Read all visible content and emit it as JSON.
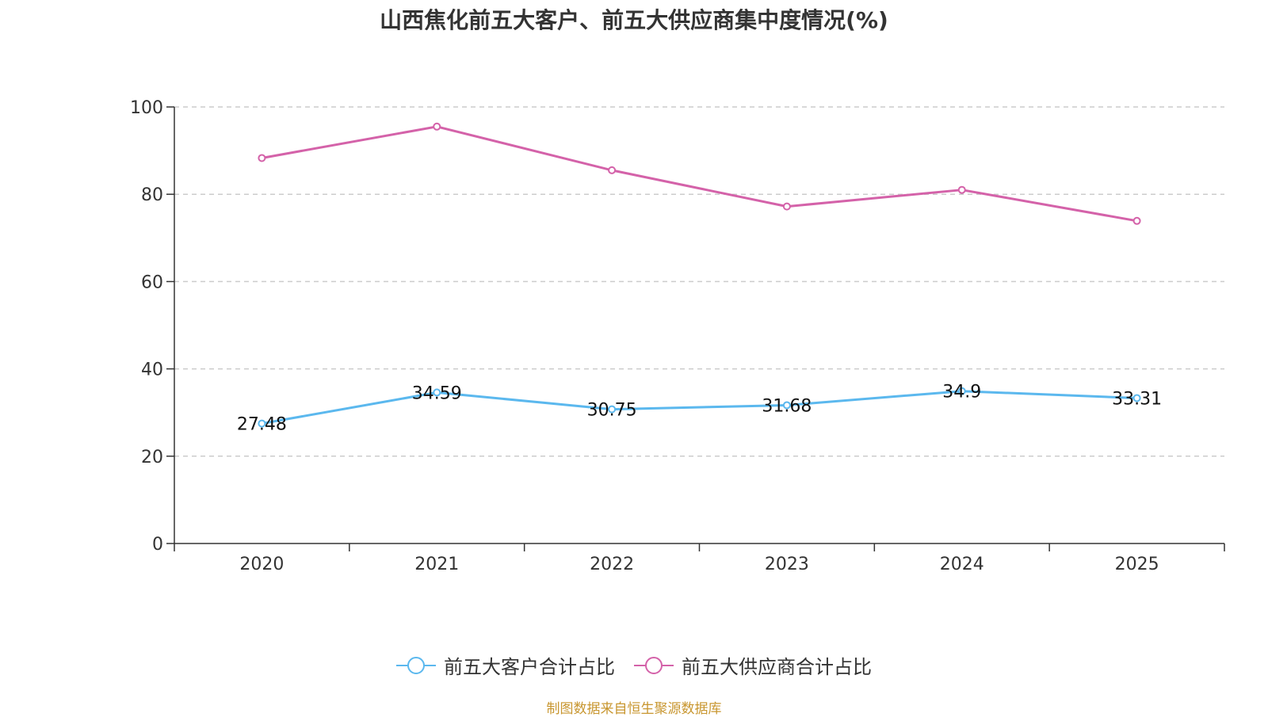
{
  "chart_data": {
    "type": "line",
    "title": "山西焦化前五大客户、前五大供应商集中度情况(%)",
    "categories": [
      "2020",
      "2021",
      "2022",
      "2023",
      "2024",
      "2025"
    ],
    "ylim": [
      0,
      100
    ],
    "yticks": [
      0,
      20,
      40,
      60,
      80,
      100
    ],
    "grid": true,
    "legend_position": "bottom",
    "series": [
      {
        "name": "前五大客户合计占比",
        "color": "#5bb8ee",
        "values": [
          27.48,
          34.59,
          30.75,
          31.68,
          34.9,
          33.31
        ],
        "labels": [
          "27.48",
          "34.59",
          "30.75",
          "31.68",
          "34.9",
          "33.31"
        ],
        "show_labels": true
      },
      {
        "name": "前五大供应商合计占比",
        "color": "#d462a9",
        "values": [
          88.3,
          95.5,
          85.5,
          77.2,
          81.0,
          73.9
        ],
        "show_labels": false
      }
    ]
  },
  "source": "制图数据来自恒生聚源数据库"
}
